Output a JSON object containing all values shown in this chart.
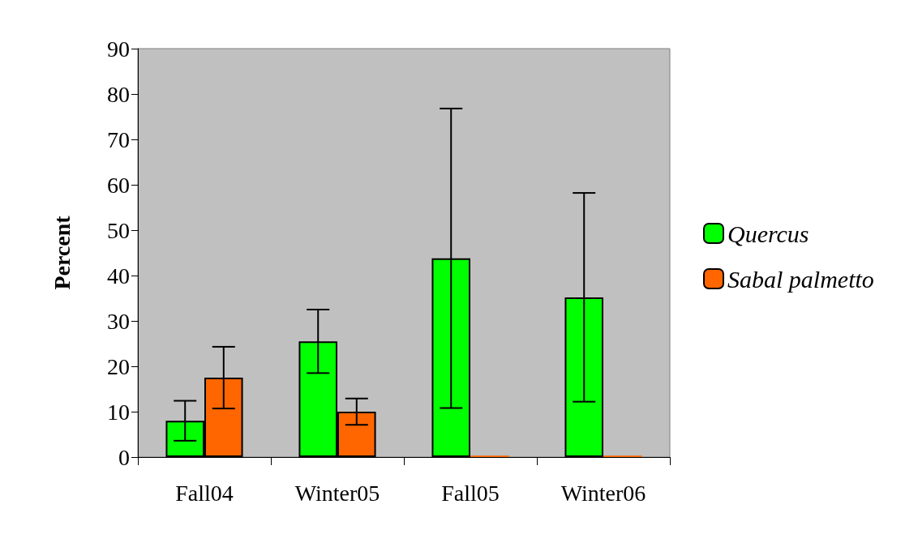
{
  "chart_data": {
    "type": "bar",
    "ylabel": "Percent",
    "categories": [
      "Fall04",
      "Winter05",
      "Fall05",
      "Winter06"
    ],
    "series": [
      {
        "name": "Quercus",
        "color": "#00ff00",
        "values": [
          8,
          25.5,
          43.8,
          35.2
        ],
        "errors": [
          4.4,
          7,
          33,
          23
        ]
      },
      {
        "name": "Sabal palmetto",
        "color": "#ff6600",
        "values": [
          17.5,
          10,
          0.3,
          0.3
        ],
        "errors": [
          6.8,
          2.9,
          null,
          null
        ]
      }
    ],
    "ylim": [
      0,
      90
    ],
    "yticks": [
      0,
      10,
      20,
      30,
      40,
      50,
      60,
      70,
      80,
      90
    ],
    "grid": false,
    "legend": "right"
  }
}
